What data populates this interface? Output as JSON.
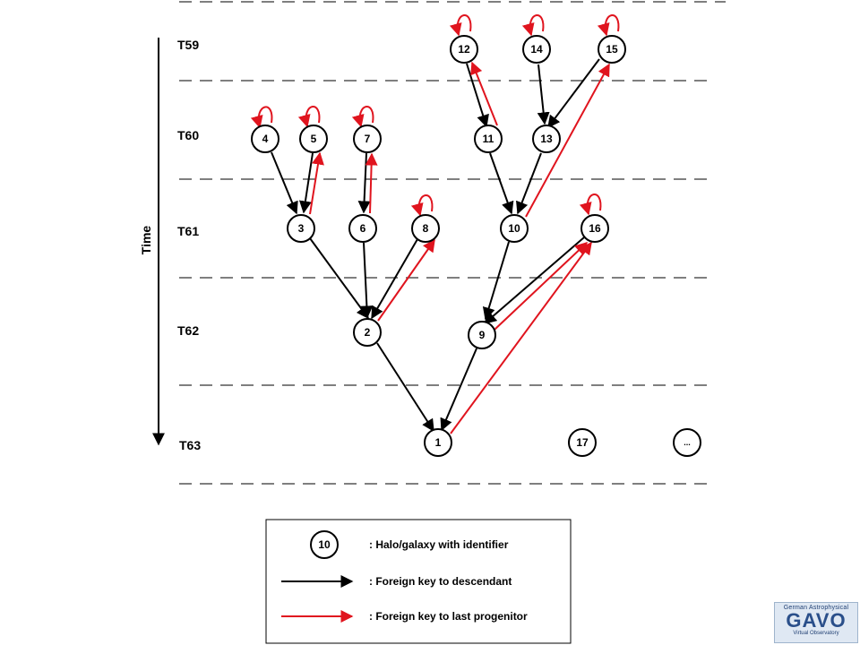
{
  "time_axis": {
    "label": "Time"
  },
  "snapshots": [
    "T59",
    "T60",
    "T61",
    "T62",
    "T63"
  ],
  "nodes": [
    "1",
    "2",
    "3",
    "4",
    "5",
    "6",
    "7",
    "8",
    "9",
    "10",
    "11",
    "12",
    "13",
    "14",
    "15",
    "16",
    "17",
    "..."
  ],
  "descendant_links": [
    [
      "4",
      "3"
    ],
    [
      "5",
      "3"
    ],
    [
      "7",
      "6"
    ],
    [
      "3",
      "2"
    ],
    [
      "6",
      "2"
    ],
    [
      "8",
      "2"
    ],
    [
      "2",
      "1"
    ],
    [
      "12",
      "11"
    ],
    [
      "14",
      "13"
    ],
    [
      "15",
      "13"
    ],
    [
      "11",
      "10"
    ],
    [
      "13",
      "10"
    ],
    [
      "10",
      "9"
    ],
    [
      "16",
      "9"
    ],
    [
      "9",
      "1"
    ]
  ],
  "last_progenitor_links": [
    [
      "4",
      "4"
    ],
    [
      "5",
      "5"
    ],
    [
      "7",
      "7"
    ],
    [
      "8",
      "8"
    ],
    [
      "12",
      "12"
    ],
    [
      "14",
      "14"
    ],
    [
      "15",
      "15"
    ],
    [
      "16",
      "16"
    ],
    [
      "3",
      "5"
    ],
    [
      "6",
      "7"
    ],
    [
      "2",
      "8"
    ],
    [
      "11",
      "12"
    ],
    [
      "10",
      "15"
    ],
    [
      "9",
      "16"
    ],
    [
      "1",
      "16"
    ]
  ],
  "legend": {
    "node_example": "10",
    "node_text": ": Halo/galaxy with identifier",
    "descendant_text": ": Foreign key to descendant",
    "progenitor_text": ": Foreign key to last progenitor"
  },
  "colors": {
    "descendant": "#000000",
    "last_progenitor": "#e0141e",
    "dashed_line": "#555555"
  },
  "logo": {
    "top": "German Astrophysical",
    "main": "GAVO",
    "bottom": "Virtual Observatory"
  }
}
